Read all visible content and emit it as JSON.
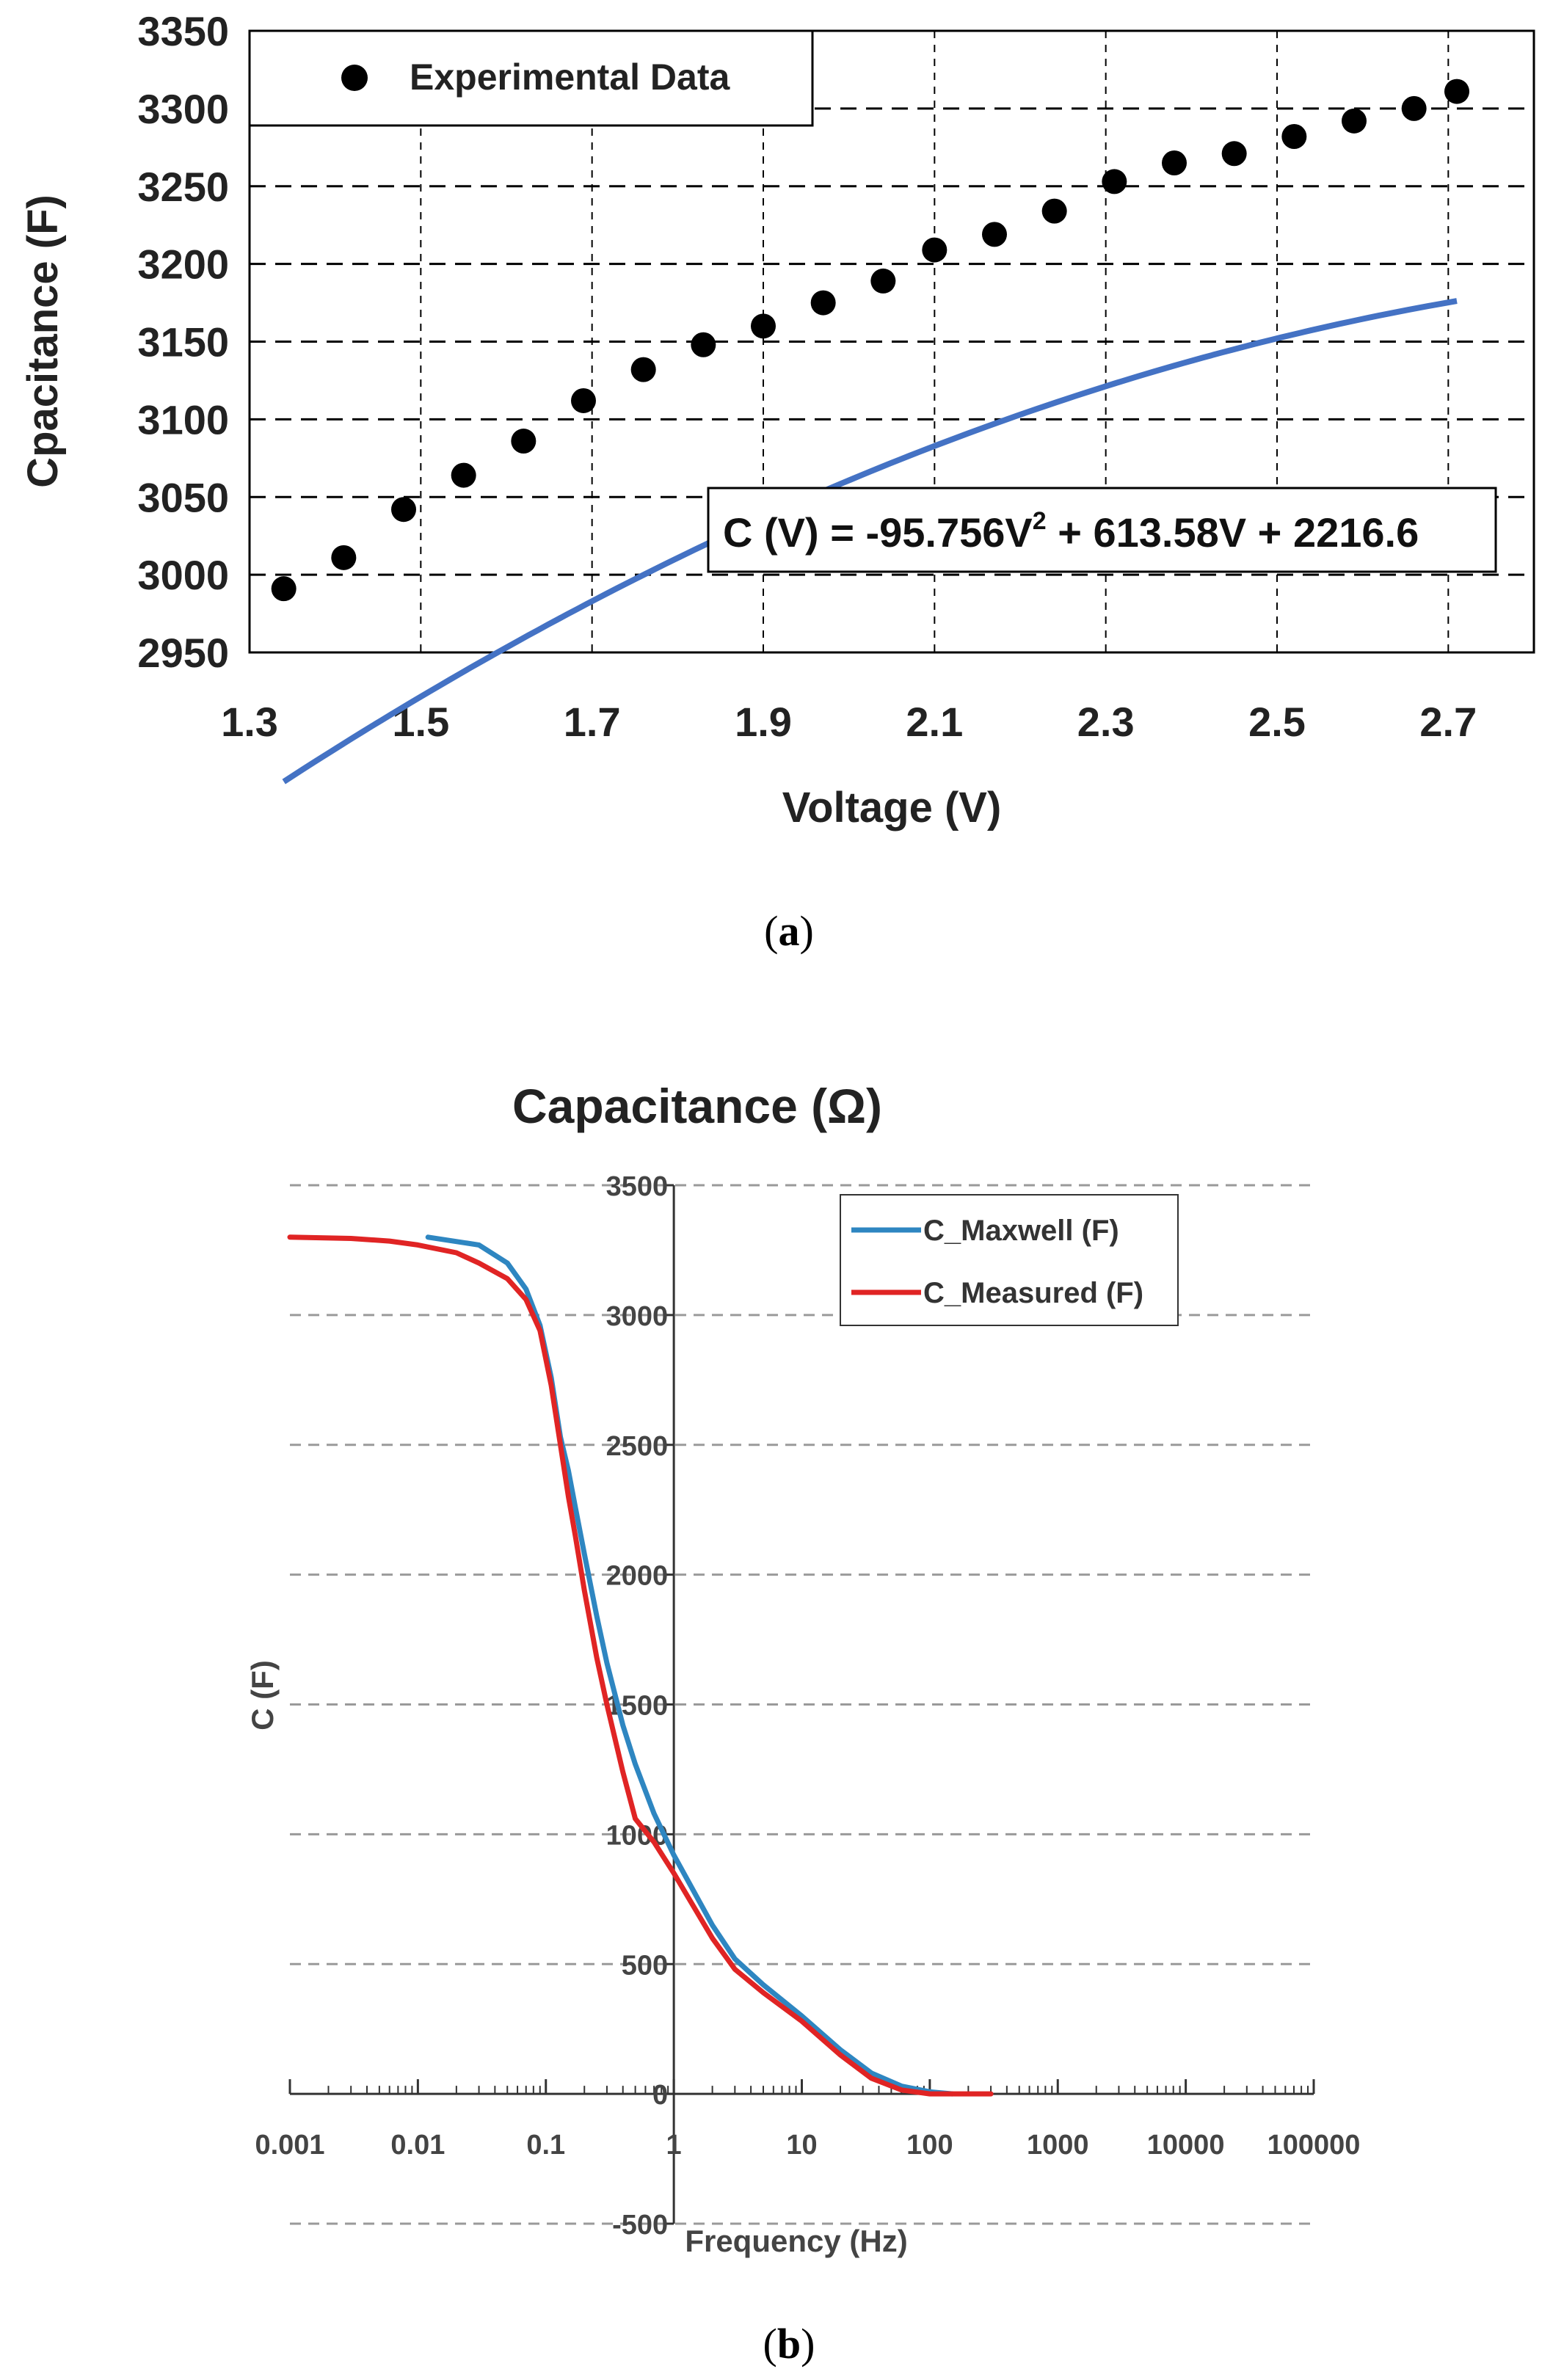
{
  "chart_data": [
    {
      "type": "scatter",
      "panel": "a",
      "title": "",
      "xlabel": "Voltage (V)",
      "ylabel": "Cpacitance (F)",
      "xlim": [
        1.3,
        2.8
      ],
      "ylim": [
        2950,
        3350
      ],
      "x_ticks": [
        "1.3",
        "1.5",
        "1.7",
        "1.9",
        "2.1",
        "2.3",
        "2.5",
        "2.7"
      ],
      "y_ticks": [
        "2950",
        "3000",
        "3050",
        "3100",
        "3150",
        "3200",
        "3250",
        "3300",
        "3350"
      ],
      "legend_position": "top-left",
      "legend": [
        "Experimental Data"
      ],
      "series": [
        {
          "name": "Experimental Data",
          "x": [
            1.34,
            1.41,
            1.48,
            1.55,
            1.62,
            1.69,
            1.76,
            1.83,
            1.9,
            1.97,
            2.04,
            2.1,
            2.17,
            2.24,
            2.31,
            2.38,
            2.45,
            2.52,
            2.59,
            2.66,
            2.71
          ],
          "y": [
            2991,
            3011,
            3042,
            3064,
            3086,
            3112,
            3132,
            3148,
            3160,
            3175,
            3189,
            3209,
            3219,
            3234,
            3253,
            3265,
            3271,
            3282,
            3292,
            3300,
            3311
          ],
          "color": "#000000"
        }
      ],
      "fit": {
        "label_prefix": "C (V) = -95.756V",
        "label_sup": "2",
        "label_suffix": " + 613.58V + 2216.6",
        "a": -95.756,
        "b": 613.58,
        "c": 2216.6,
        "x_range": [
          1.34,
          2.71
        ],
        "color": "#4472c4"
      },
      "caption": "a"
    },
    {
      "type": "line",
      "panel": "b",
      "title": "Capacitance (Ω)",
      "xlabel": "Frequency (Hz)",
      "ylabel": "C (F)",
      "xscale": "log",
      "xlim": [
        0.001,
        100000
      ],
      "ylim": [
        -500,
        3500
      ],
      "x_ticks": [
        "0.001",
        "0.01",
        "0.1",
        "1",
        "10",
        "100",
        "1000",
        "10000",
        "100000"
      ],
      "y_ticks": [
        "-500",
        "0",
        "500",
        "1000",
        "1500",
        "2000",
        "2500",
        "3000",
        "3500"
      ],
      "legend_position": "top-right",
      "series": [
        {
          "name": "C_Maxwell (F)",
          "color": "#2e86c1",
          "x": [
            0.012,
            0.03,
            0.05,
            0.07,
            0.09,
            0.11,
            0.13,
            0.15,
            0.17,
            0.2,
            0.25,
            0.3,
            0.4,
            0.5,
            0.7,
            1,
            2,
            3,
            5,
            10,
            20,
            35,
            60,
            100,
            150
          ],
          "y": [
            3300,
            3270,
            3200,
            3100,
            2960,
            2760,
            2530,
            2400,
            2260,
            2080,
            1840,
            1660,
            1420,
            1270,
            1080,
            920,
            650,
            520,
            420,
            300,
            170,
            80,
            30,
            8,
            0
          ]
        },
        {
          "name": "C_Measured (F)",
          "color": "#e02424",
          "x": [
            0.001,
            0.003,
            0.006,
            0.01,
            0.02,
            0.03,
            0.05,
            0.07,
            0.09,
            0.11,
            0.13,
            0.15,
            0.17,
            0.2,
            0.25,
            0.3,
            0.4,
            0.5,
            0.7,
            1,
            2,
            3,
            5,
            10,
            20,
            35,
            60,
            100,
            150,
            300
          ],
          "y": [
            3300,
            3295,
            3285,
            3270,
            3240,
            3200,
            3140,
            3060,
            2940,
            2730,
            2500,
            2300,
            2150,
            1940,
            1680,
            1500,
            1240,
            1060,
            970,
            850,
            600,
            480,
            390,
            280,
            150,
            60,
            15,
            0,
            0,
            0
          ]
        }
      ],
      "caption": "b"
    }
  ]
}
